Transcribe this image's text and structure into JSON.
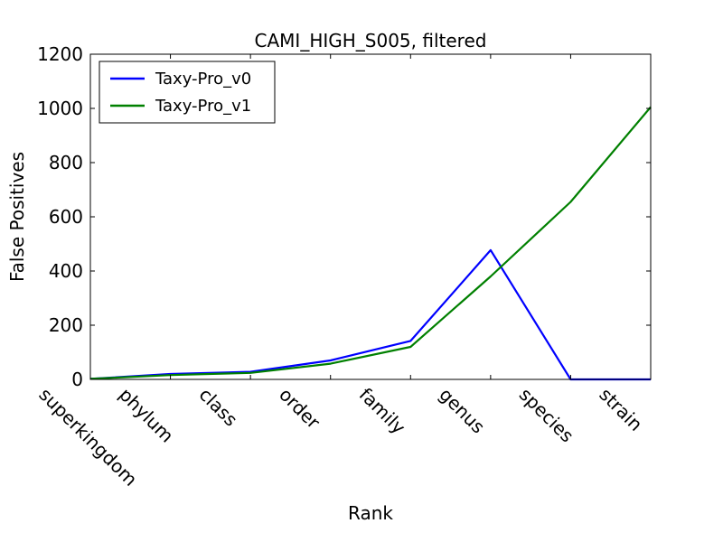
{
  "chart_data": {
    "type": "line",
    "title": "CAMI_HIGH_S005, filtered",
    "xlabel": "Rank",
    "ylabel": "False Positives",
    "categories": [
      "superkingdom",
      "phylum",
      "class",
      "order",
      "family",
      "genus",
      "species",
      "strain"
    ],
    "ylim": [
      0,
      1200
    ],
    "yticks": [
      0,
      200,
      400,
      600,
      800,
      1000,
      1200
    ],
    "grid": false,
    "legend_position": "top-left",
    "series": [
      {
        "name": "Taxy-Pro_v0",
        "color": "#0000ff",
        "values": [
          2,
          20,
          28,
          70,
          142,
          477,
          0,
          0
        ]
      },
      {
        "name": "Taxy-Pro_v1",
        "color": "#008000",
        "values": [
          2,
          16,
          24,
          58,
          120,
          380,
          655,
          1005
        ]
      }
    ]
  }
}
